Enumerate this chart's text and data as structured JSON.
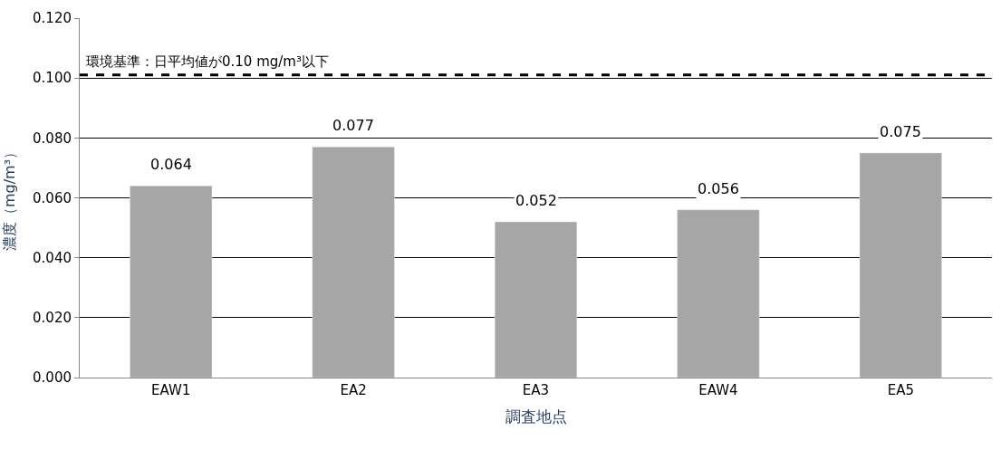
{
  "chart_data": {
    "type": "bar",
    "xlabel": "調査地点",
    "ylabel": "濃度（mg/m³）",
    "categories": [
      "EAW1",
      "EA2",
      "EA3",
      "EAW4",
      "EA5"
    ],
    "values": [
      0.064,
      0.077,
      0.052,
      0.056,
      0.075
    ],
    "color": "#a6a6a6",
    "ylim": [
      0,
      0.12
    ],
    "yticks": [
      {
        "value": 0,
        "label": "0.000"
      },
      {
        "value": 0.02,
        "label": "0.020"
      },
      {
        "value": 0.04,
        "label": "0.040"
      },
      {
        "value": 0.06,
        "label": "0.060"
      },
      {
        "value": 0.08,
        "label": "0.080"
      },
      {
        "value": 0.1,
        "label": "0.100"
      },
      {
        "value": 0.12,
        "label": "0.120"
      }
    ],
    "grid": "y",
    "data_labels": true,
    "ref_lines": [
      {
        "axis": "y",
        "value": 0.101,
        "label": "環境基準：日平均値が0.10 mg/m³以下",
        "color": "#000000",
        "line_style": "dashed"
      }
    ]
  }
}
